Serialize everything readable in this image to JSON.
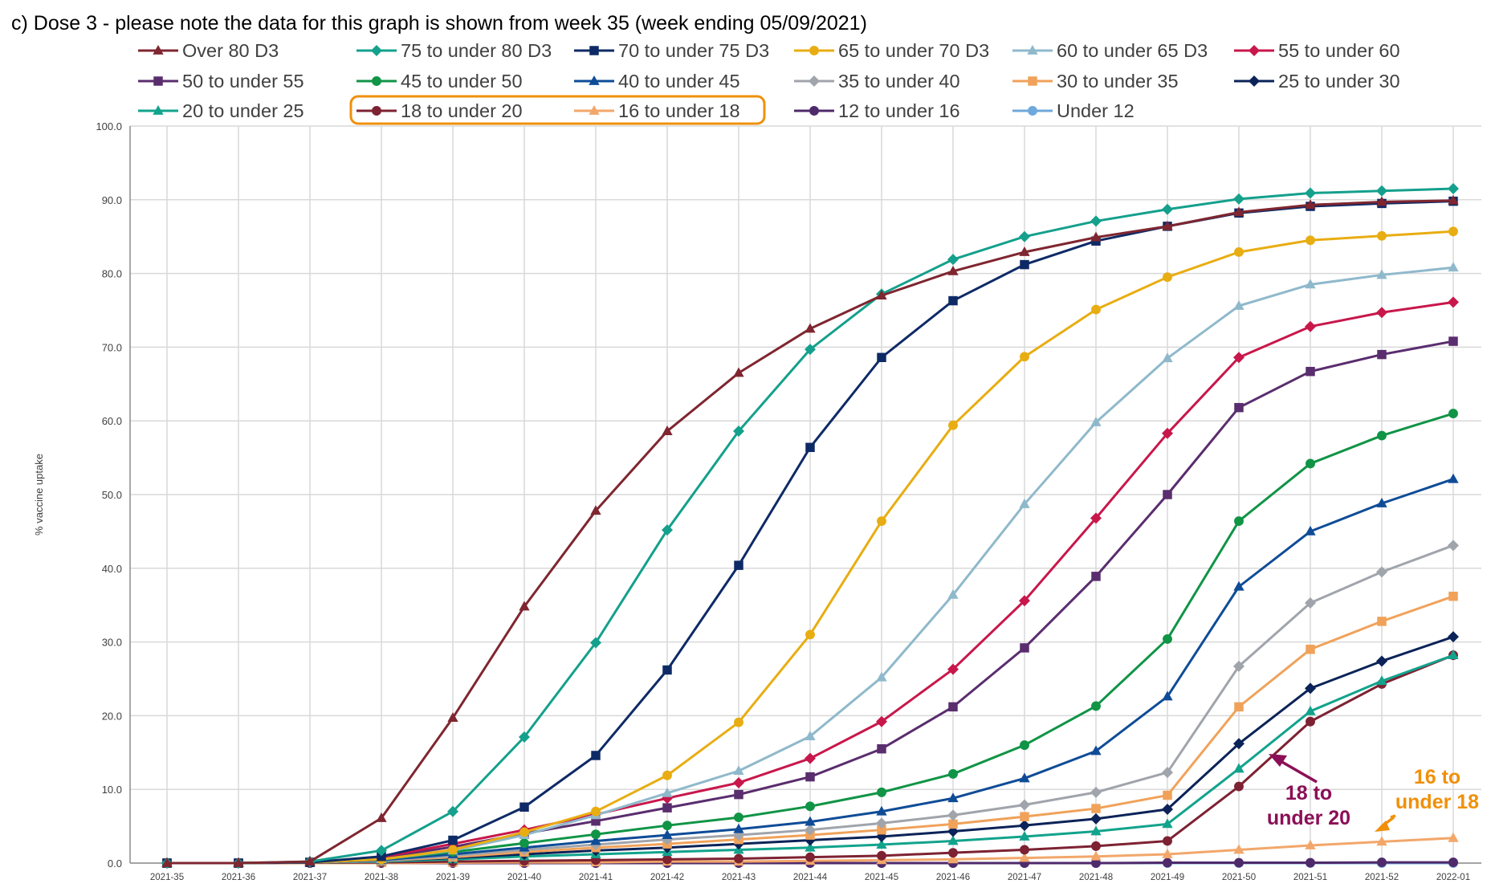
{
  "chart_data": {
    "type": "line",
    "title": "c) Dose 3 - please note the data for this graph is shown from week 35 (week ending 05/09/2021)",
    "xlabel": "",
    "ylabel": "% vaccine uptake",
    "ylim": [
      0,
      100
    ],
    "y_ticks": [
      "0.0",
      "10.0",
      "20.0",
      "30.0",
      "40.0",
      "50.0",
      "60.0",
      "70.0",
      "80.0",
      "90.0",
      "100.0"
    ],
    "grid": true,
    "legend_position": "top",
    "categories": [
      "2021-35",
      "2021-36",
      "2021-37",
      "2021-38",
      "2021-39",
      "2021-40",
      "2021-41",
      "2021-42",
      "2021-43",
      "2021-44",
      "2021-45",
      "2021-46",
      "2021-47",
      "2021-48",
      "2021-49",
      "2021-50",
      "2021-51",
      "2021-52",
      "2022-01"
    ],
    "series": [
      {
        "name": "Over 80 D3",
        "color": "#7f2630",
        "marker": "triangle",
        "values": [
          0,
          0,
          0.2,
          6.1,
          19.7,
          34.8,
          47.8,
          58.6,
          66.5,
          72.5,
          77.0,
          80.3,
          82.9,
          84.9,
          86.4,
          88.3,
          89.3,
          89.7,
          89.9
        ]
      },
      {
        "name": "75 to under 80 D3",
        "color": "#14a08c",
        "marker": "diamond",
        "values": [
          0,
          0,
          0.2,
          1.7,
          7.0,
          17.1,
          29.9,
          45.2,
          58.6,
          69.7,
          77.2,
          81.9,
          85.0,
          87.1,
          88.7,
          90.1,
          90.9,
          91.2,
          91.5
        ]
      },
      {
        "name": "70 to under 75 D3",
        "color": "#0e2a66",
        "marker": "square",
        "values": [
          0,
          0,
          0.1,
          0.9,
          3.1,
          7.6,
          14.6,
          26.2,
          40.4,
          56.4,
          68.6,
          76.3,
          81.2,
          84.4,
          86.4,
          88.2,
          89.1,
          89.5,
          89.8
        ]
      },
      {
        "name": "65 to under 70 D3",
        "color": "#e8ad12",
        "marker": "circle",
        "values": [
          0,
          0,
          0.1,
          0.5,
          1.8,
          4.2,
          7.0,
          11.9,
          19.1,
          31.0,
          46.4,
          59.4,
          68.7,
          75.1,
          79.5,
          82.9,
          84.5,
          85.1,
          85.7
        ]
      },
      {
        "name": "60 to under 65 D3",
        "color": "#8fb9cb",
        "marker": "triangle",
        "values": [
          0,
          0,
          0.1,
          0.5,
          1.7,
          3.8,
          6.5,
          9.5,
          12.5,
          17.2,
          25.2,
          36.4,
          48.7,
          59.8,
          68.5,
          75.6,
          78.5,
          79.8,
          80.8
        ]
      },
      {
        "name": "55 to under 60",
        "color": "#c8174b",
        "marker": "diamond",
        "values": [
          0,
          0,
          0.1,
          0.8,
          2.6,
          4.5,
          6.6,
          8.8,
          10.9,
          14.2,
          19.2,
          26.3,
          35.6,
          46.8,
          58.3,
          68.6,
          72.8,
          74.7,
          76.1
        ]
      },
      {
        "name": "50 to under 55",
        "color": "#5a2d6e",
        "marker": "square",
        "values": [
          0,
          0,
          0.1,
          0.7,
          2.2,
          4.0,
          5.7,
          7.5,
          9.3,
          11.7,
          15.5,
          21.2,
          29.2,
          38.9,
          50.0,
          61.8,
          66.7,
          69.0,
          70.8
        ]
      },
      {
        "name": "45 to under 50",
        "color": "#109446",
        "marker": "circle",
        "values": [
          0,
          0,
          0.1,
          0.5,
          1.5,
          2.7,
          3.9,
          5.1,
          6.2,
          7.7,
          9.6,
          12.1,
          16.0,
          21.3,
          30.4,
          46.4,
          54.2,
          58.0,
          61.0
        ]
      },
      {
        "name": "40 to under 45",
        "color": "#0f4c97",
        "marker": "triangle",
        "values": [
          0,
          0,
          0.1,
          0.4,
          1.2,
          2.1,
          3.0,
          3.8,
          4.6,
          5.6,
          7.0,
          8.8,
          11.5,
          15.2,
          22.6,
          37.5,
          45.0,
          48.8,
          52.1
        ]
      },
      {
        "name": "35 to under 40",
        "color": "#a0a4ab",
        "marker": "diamond",
        "values": [
          0,
          0,
          0.1,
          0.3,
          1.0,
          1.8,
          2.5,
          3.2,
          3.8,
          4.5,
          5.4,
          6.5,
          7.9,
          9.6,
          12.3,
          26.7,
          35.3,
          39.5,
          43.1
        ]
      },
      {
        "name": "30 to under 35",
        "color": "#f0a25a",
        "marker": "square",
        "values": [
          0,
          0,
          0.1,
          0.3,
          0.8,
          1.5,
          2.1,
          2.6,
          3.2,
          3.8,
          4.5,
          5.3,
          6.3,
          7.4,
          9.2,
          21.2,
          29.0,
          32.8,
          36.2
        ]
      },
      {
        "name": "25 to under 30",
        "color": "#0b2358",
        "marker": "diamond",
        "values": [
          0,
          0,
          0.1,
          0.3,
          0.7,
          1.2,
          1.7,
          2.1,
          2.6,
          3.1,
          3.6,
          4.3,
          5.1,
          6.0,
          7.3,
          16.2,
          23.7,
          27.4,
          30.7
        ]
      },
      {
        "name": "20 to under 25",
        "color": "#12a38c",
        "marker": "triangle",
        "values": [
          0,
          0,
          0.1,
          0.2,
          0.5,
          0.9,
          1.2,
          1.5,
          1.8,
          2.1,
          2.5,
          3.0,
          3.6,
          4.3,
          5.3,
          12.8,
          20.6,
          24.7,
          28.2
        ]
      },
      {
        "name": "18 to under 20",
        "color": "#7d2232",
        "marker": "circle",
        "values": [
          0,
          0,
          0.05,
          0.1,
          0.2,
          0.3,
          0.4,
          0.5,
          0.6,
          0.8,
          1.0,
          1.4,
          1.8,
          2.3,
          3.0,
          10.4,
          19.2,
          24.3,
          28.2
        ]
      },
      {
        "name": "16 to under 18",
        "color": "#f2a76a",
        "marker": "triangle",
        "values": [
          0,
          0,
          0,
          0,
          0.05,
          0.1,
          0.1,
          0.2,
          0.2,
          0.3,
          0.4,
          0.5,
          0.7,
          0.9,
          1.2,
          1.8,
          2.4,
          2.9,
          3.4
        ]
      },
      {
        "name": "12 to under 16",
        "color": "#4f2a6b",
        "marker": "circle",
        "values": [
          0,
          0,
          0,
          0,
          0,
          0,
          0,
          0,
          0,
          0,
          0,
          0,
          0,
          0,
          0.05,
          0.05,
          0.05,
          0.1,
          0.1
        ]
      },
      {
        "name": "Under 12",
        "color": "#6fa8dc",
        "marker": "circle",
        "values": [
          0,
          0,
          0,
          0,
          0,
          0,
          0,
          0,
          0,
          0,
          0,
          0,
          0,
          0,
          0,
          0,
          0,
          0,
          0
        ]
      }
    ],
    "highlight_box_color": "#f0900a",
    "annotations": [
      {
        "text_lines": [
          "18 to",
          "under 20"
        ],
        "color": "#8b0f56"
      },
      {
        "text_lines": [
          "16 to",
          "under 18"
        ],
        "color": "#f0900a"
      }
    ]
  }
}
